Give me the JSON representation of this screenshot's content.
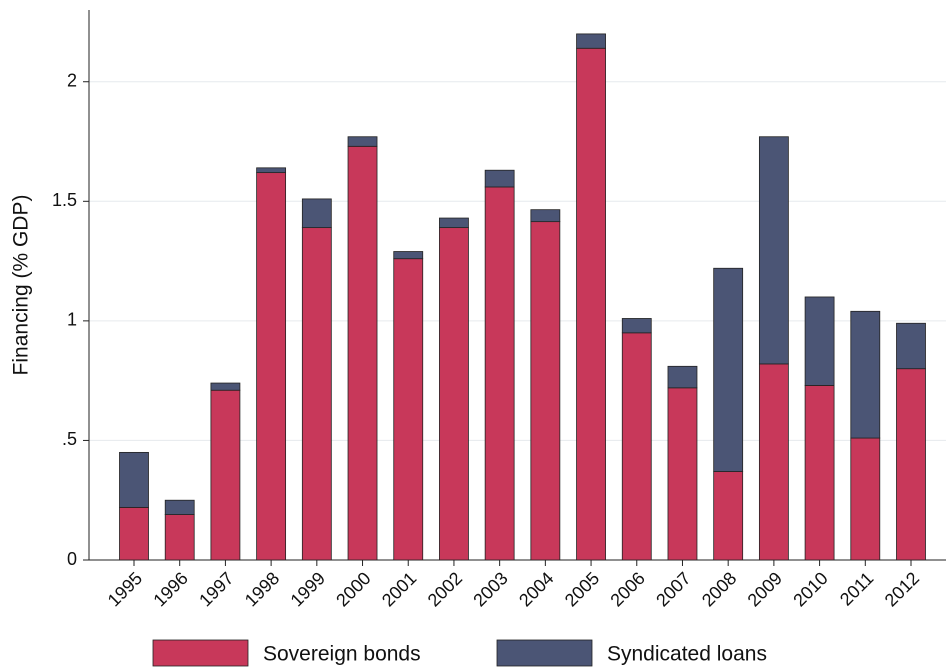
{
  "chart_data": {
    "type": "stacked_bar",
    "y_label": "Financing (% GDP)",
    "categories": [
      "1995",
      "1996",
      "1997",
      "1998",
      "1999",
      "2000",
      "2001",
      "2002",
      "2003",
      "2004",
      "2005",
      "2006",
      "2007",
      "2008",
      "2009",
      "2010",
      "2011",
      "2012"
    ],
    "series": [
      {
        "name": "Sovereign bonds",
        "color": "#c8385a",
        "values": [
          0.22,
          0.19,
          0.71,
          1.62,
          1.39,
          1.73,
          1.26,
          1.39,
          1.56,
          1.415,
          2.14,
          0.95,
          0.72,
          0.37,
          0.82,
          0.73,
          0.51,
          0.8
        ]
      },
      {
        "name": "Syndicated loans",
        "color": "#4b5575",
        "values": [
          0.23,
          0.06,
          0.03,
          0.02,
          0.12,
          0.04,
          0.03,
          0.04,
          0.07,
          0.05,
          0.06,
          0.06,
          0.09,
          0.85,
          0.95,
          0.37,
          0.53,
          0.19
        ]
      }
    ],
    "ylim": [
      0,
      2.3
    ],
    "yticks": [
      0,
      {
        "value": 0.5,
        "label": ".5"
      },
      1,
      1.5,
      2
    ],
    "grid": true
  }
}
